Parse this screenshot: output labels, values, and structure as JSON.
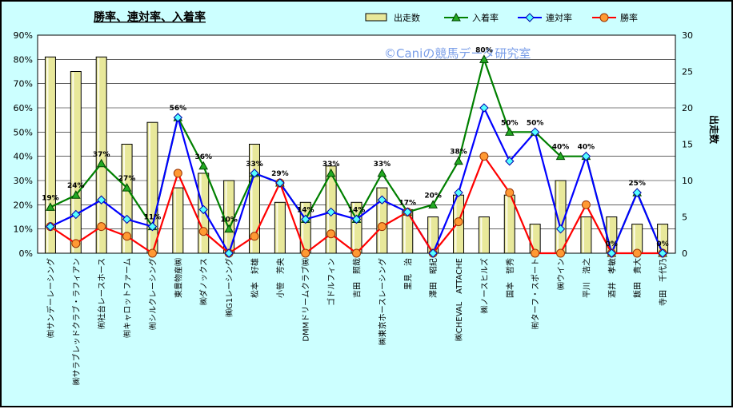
{
  "chart_data": {
    "type": "bar",
    "title": "勝率、連対率、入着率",
    "watermark": "©Caniの競馬データ研究室",
    "y_left": {
      "min": 0,
      "max": 90,
      "step": 10,
      "unit": "%"
    },
    "y_right": {
      "min": 0,
      "max": 30,
      "step": 5,
      "label": "出走数"
    },
    "grid": true,
    "legend_position": "top-right",
    "categories": [
      "㈲サンデーレーシング",
      "㈱サラブレッドクラブ・ラフィアン",
      "㈲社台レースホース",
      "㈲キャロットファーム",
      "㈲シルクレーシング",
      "東豊物産㈱",
      "㈱ダノックス",
      "㈱G1レーシング",
      "松本　好雄",
      "小笹　芳央",
      "DMMドリームクラブ㈱",
      "ゴドルフィン",
      "吉田　照哉",
      "㈱東京ホースレーシング",
      "里見　治",
      "澤田　昭紀",
      "㈱CHEVAL　ATTACHE",
      "㈱ノースヒルズ",
      "国本　哲秀",
      "㈲ターフ・スポート",
      "㈱ウイン",
      "平川　浩之",
      "酒井　孝敏",
      "飯田　貴大",
      "寺田　千代乃"
    ],
    "series": [
      {
        "name": "出走数",
        "type": "bar",
        "axis": "right",
        "color": "#e8e89a",
        "values": [
          27,
          25,
          27,
          15,
          18,
          9,
          11,
          10,
          15,
          7,
          7,
          12,
          7,
          9,
          6,
          5,
          8,
          5,
          8,
          4,
          10,
          5,
          5,
          4,
          4
        ]
      },
      {
        "name": "入着率",
        "type": "line",
        "axis": "left",
        "color": "#008000",
        "marker": "triangle",
        "values": [
          19,
          24,
          37,
          27,
          11,
          56,
          36,
          10,
          33,
          29,
          14,
          33,
          14,
          33,
          17,
          20,
          38,
          80,
          50,
          50,
          40,
          40,
          0,
          25,
          0
        ],
        "labels": [
          "19%",
          "24%",
          "37%",
          "27%",
          "11%",
          "56%",
          "36%",
          "10%",
          "33%",
          "29%",
          "14%",
          "33%",
          "14%",
          "33%",
          "17%",
          "20%",
          "38%",
          "80%",
          "50%",
          "50%",
          "40%",
          "40%",
          "0%",
          "25%",
          "0%"
        ]
      },
      {
        "name": "連対率",
        "type": "line",
        "axis": "left",
        "color": "#0000ff",
        "marker": "diamond",
        "values": [
          11,
          16,
          22,
          14,
          11,
          56,
          18,
          0,
          33,
          29,
          14,
          17,
          14,
          22,
          17,
          0,
          25,
          60,
          38,
          50,
          10,
          40,
          0,
          25,
          0
        ]
      },
      {
        "name": "勝率",
        "type": "line",
        "axis": "left",
        "color": "#ff0000",
        "marker": "circle",
        "values": [
          11,
          4,
          11,
          7,
          0,
          33,
          9,
          0,
          7,
          29,
          0,
          8,
          0,
          11,
          17,
          0,
          13,
          40,
          25,
          0,
          0,
          20,
          0,
          0,
          0
        ]
      }
    ]
  }
}
